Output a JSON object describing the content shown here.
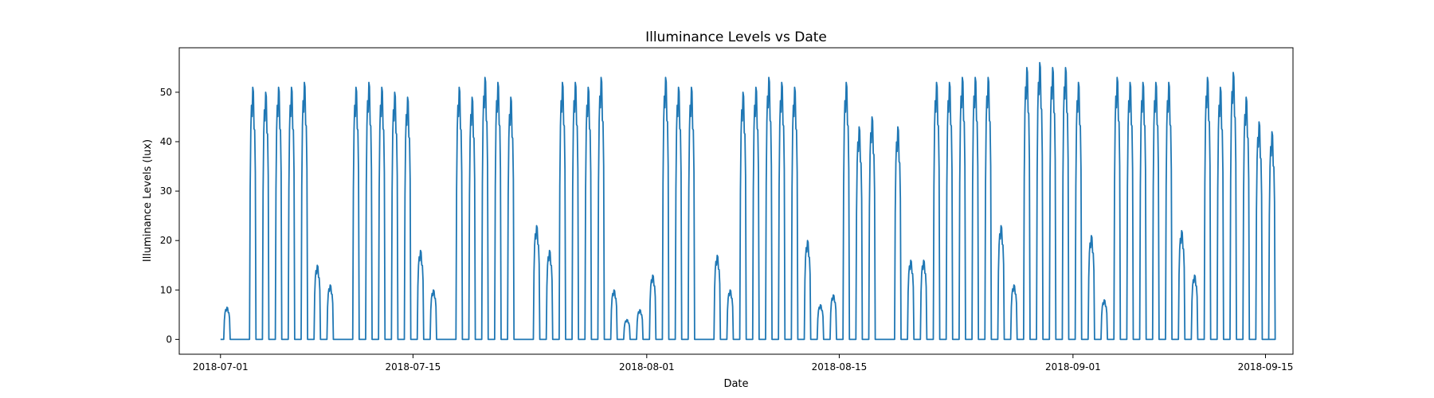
{
  "chart_data": {
    "type": "line",
    "title": "Illuminance Levels vs Date",
    "xlabel": "Date",
    "ylabel": "Illuminance Levels (lux)",
    "xlim": [
      "2018-06-28",
      "2018-09-17"
    ],
    "ylim": [
      -3,
      59
    ],
    "grid": false,
    "color": "#1f77b4",
    "x_ticks": [
      "2018-07-01",
      "2018-07-15",
      "2018-08-01",
      "2018-08-15",
      "2018-09-01",
      "2018-09-15"
    ],
    "y_ticks": [
      0,
      10,
      20,
      30,
      40,
      50
    ],
    "series": [
      {
        "x_start": "2018-07-01",
        "x_end": "2018-09-15",
        "values": [
          6.5,
          0,
          51,
          50,
          51,
          51,
          52,
          15,
          11,
          0,
          51,
          52,
          51,
          50,
          49,
          18,
          10,
          0,
          51,
          49,
          53,
          52,
          49,
          0,
          23,
          18,
          52,
          52,
          51,
          53,
          10,
          4,
          6,
          13,
          53,
          51,
          51,
          0,
          17,
          10,
          50,
          51,
          53,
          52,
          51,
          20,
          7,
          9,
          52,
          43,
          45,
          0,
          43,
          16,
          16,
          52,
          52,
          53,
          53,
          53,
          23,
          11,
          55,
          56,
          55,
          55,
          52,
          21,
          8,
          53,
          52,
          52,
          52,
          52,
          22,
          13,
          53,
          51,
          54,
          49,
          44,
          42
        ]
      }
    ]
  }
}
